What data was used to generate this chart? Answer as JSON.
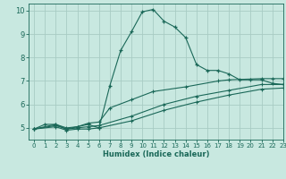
{
  "xlabel": "Humidex (Indice chaleur)",
  "bg_color": "#c8e8e0",
  "grid_color": "#a8ccc4",
  "line_color": "#1a6858",
  "xlim": [
    -0.5,
    23
  ],
  "ylim": [
    4.5,
    10.3
  ],
  "xticks": [
    0,
    1,
    2,
    3,
    4,
    5,
    6,
    7,
    8,
    9,
    10,
    11,
    12,
    13,
    14,
    15,
    16,
    17,
    18,
    19,
    20,
    21,
    22,
    23
  ],
  "yticks": [
    5,
    6,
    7,
    8,
    9,
    10
  ],
  "curve1_x": [
    0,
    1,
    2,
    3,
    4,
    5,
    6,
    7,
    8,
    9,
    10,
    11,
    12,
    13,
    14,
    15,
    16,
    17,
    18,
    19,
    20,
    21,
    22,
    23
  ],
  "curve1_y": [
    4.95,
    5.15,
    5.15,
    4.95,
    5.05,
    5.15,
    5.0,
    6.8,
    8.3,
    9.1,
    9.95,
    10.05,
    9.55,
    9.3,
    8.85,
    7.7,
    7.45,
    7.45,
    7.3,
    7.05,
    7.05,
    7.05,
    6.9,
    6.85
  ],
  "curve2_x": [
    0,
    2,
    3,
    4,
    5,
    6,
    7,
    9,
    11,
    14,
    17,
    18,
    21,
    22,
    23
  ],
  "curve2_y": [
    4.95,
    5.15,
    5.0,
    5.05,
    5.2,
    5.25,
    5.85,
    6.2,
    6.55,
    6.75,
    7.0,
    7.05,
    7.1,
    7.1,
    7.1
  ],
  "curve3_x": [
    0,
    2,
    3,
    4,
    5,
    6,
    9,
    12,
    15,
    18,
    21,
    23
  ],
  "curve3_y": [
    4.95,
    5.1,
    4.95,
    5.0,
    5.05,
    5.1,
    5.5,
    6.0,
    6.35,
    6.6,
    6.85,
    6.85
  ],
  "curve4_x": [
    0,
    2,
    3,
    4,
    5,
    6,
    9,
    12,
    15,
    18,
    21,
    23
  ],
  "curve4_y": [
    4.95,
    5.05,
    4.9,
    4.95,
    4.95,
    5.0,
    5.3,
    5.75,
    6.1,
    6.4,
    6.65,
    6.7
  ]
}
